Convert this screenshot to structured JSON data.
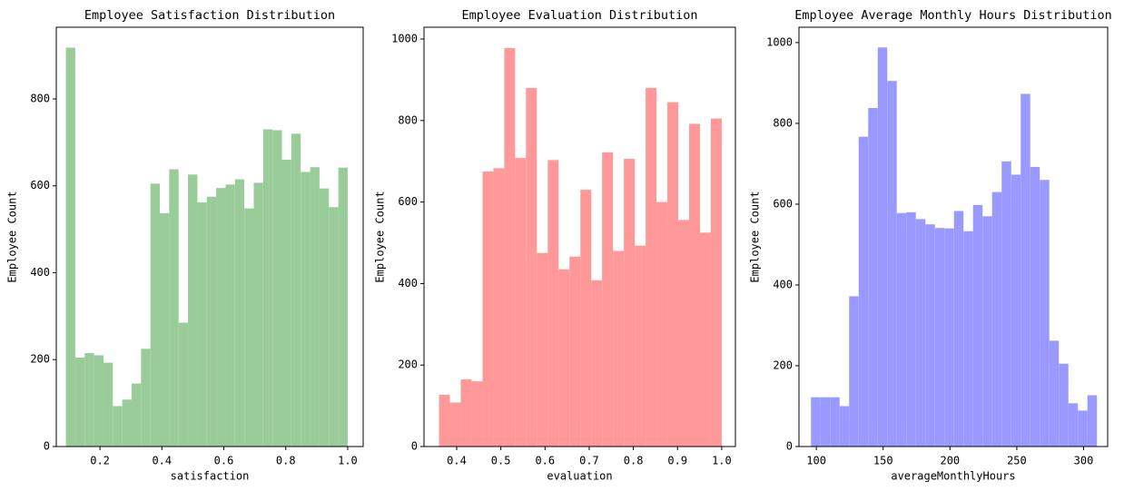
{
  "chart_data": [
    {
      "type": "histogram",
      "title": "Employee Satisfaction Distribution",
      "x_label": "satisfaction",
      "y_label": "Employee Count",
      "color": "#99cc99",
      "bins": [
        0.09,
        0.1203,
        0.1507,
        0.181,
        0.2113,
        0.2417,
        0.272,
        0.3023,
        0.3327,
        0.363,
        0.3933,
        0.4237,
        0.454,
        0.4843,
        0.5147,
        0.545,
        0.5753,
        0.6057,
        0.636,
        0.6663,
        0.6967,
        0.727,
        0.7573,
        0.7877,
        0.818,
        0.8483,
        0.8787,
        0.909,
        0.9393,
        0.9697,
        1.0
      ],
      "values": [
        918,
        205,
        215,
        210,
        193,
        93,
        108,
        145,
        225,
        605,
        537,
        638,
        285,
        626,
        562,
        575,
        595,
        603,
        615,
        548,
        607,
        730,
        728,
        660,
        720,
        632,
        643,
        594,
        551,
        642
      ],
      "xlim": [
        0.059,
        1.05
      ],
      "ylim": [
        0,
        965
      ],
      "xticks": [
        0.2,
        0.4,
        0.6,
        0.8,
        {
          "value": 1.0,
          "label": "1.0"
        }
      ],
      "yticks": [
        0,
        200,
        400,
        600,
        800
      ]
    },
    {
      "type": "histogram",
      "title": "Employee Evaluation Distribution",
      "x_label": "evaluation",
      "y_label": "Employee Count",
      "color": "#ff9999",
      "bins": [
        0.36,
        0.3846,
        0.4092,
        0.4338,
        0.4585,
        0.4831,
        0.5077,
        0.5323,
        0.5569,
        0.5815,
        0.6062,
        0.6308,
        0.6554,
        0.68,
        0.7046,
        0.7292,
        0.7538,
        0.7785,
        0.8031,
        0.8277,
        0.8523,
        0.8769,
        0.9015,
        0.9262,
        0.9508,
        0.9754,
        1.0
      ],
      "values": [
        127,
        108,
        165,
        160,
        675,
        683,
        978,
        708,
        880,
        475,
        703,
        435,
        466,
        630,
        408,
        722,
        480,
        706,
        493,
        880,
        600,
        845,
        556,
        792,
        525,
        805
      ],
      "xlim": [
        0.326,
        1.031
      ],
      "ylim": [
        0,
        1029
      ],
      "xticks": [
        0.4,
        0.5,
        0.6,
        0.7,
        0.8,
        0.9,
        {
          "value": 1.0,
          "label": "1.0"
        }
      ],
      "yticks": [
        0,
        200,
        400,
        600,
        800,
        1000
      ]
    },
    {
      "type": "histogram",
      "title": "Employee Average Monthly Hours Distribution",
      "x_label": "averageMonthlyHours",
      "y_label": "Employee Count",
      "color": "#9999ff",
      "bins": [
        96,
        103.13,
        110.27,
        117.4,
        124.53,
        131.67,
        138.8,
        145.93,
        153.07,
        160.2,
        167.33,
        174.47,
        181.6,
        188.73,
        195.87,
        203,
        210.13,
        217.27,
        224.4,
        231.53,
        238.67,
        245.8,
        252.93,
        260.07,
        267.2,
        274.33,
        281.47,
        288.6,
        295.73,
        302.87,
        310
      ],
      "values": [
        122,
        122,
        122,
        100,
        372,
        767,
        838,
        988,
        905,
        578,
        580,
        563,
        550,
        541,
        540,
        583,
        533,
        598,
        570,
        630,
        706,
        673,
        873,
        692,
        660,
        262,
        205,
        107,
        89,
        127
      ],
      "xlim": [
        87,
        318
      ],
      "ylim": [
        0,
        1038
      ],
      "xticks": [
        100,
        150,
        200,
        250,
        300
      ],
      "yticks": [
        0,
        200,
        400,
        600,
        800,
        1000
      ]
    }
  ]
}
